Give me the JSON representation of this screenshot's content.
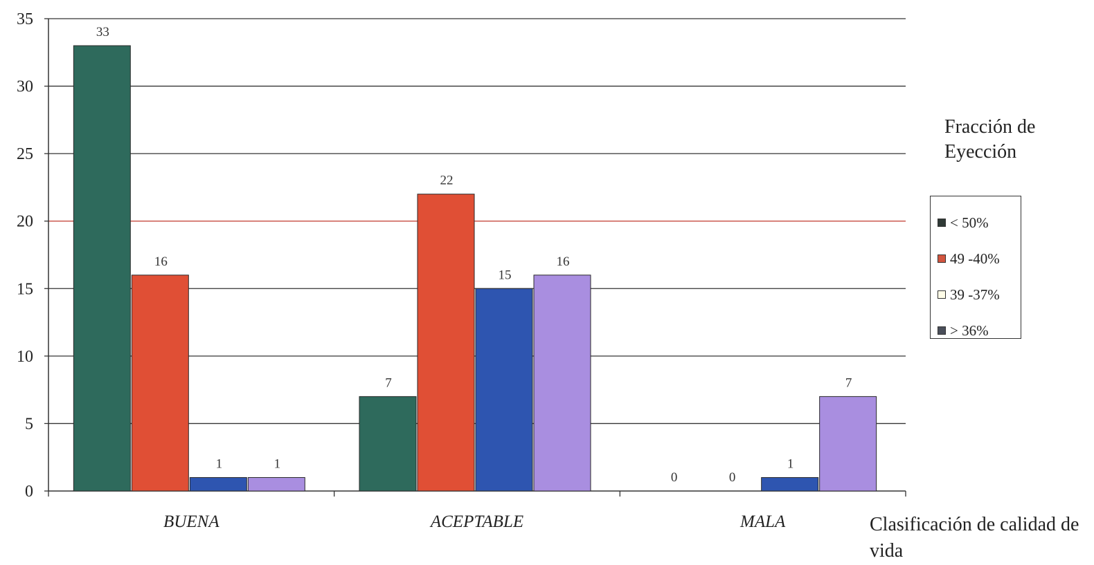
{
  "chart_data": {
    "type": "bar",
    "categories": [
      "BUENA",
      "ACEPTABLE",
      "MALA"
    ],
    "series": [
      {
        "name": "< 50%",
        "values": [
          33,
          7,
          0
        ],
        "color": "#2e6a5c"
      },
      {
        "name": "49 -40%",
        "values": [
          16,
          22,
          0
        ],
        "color": "#e04f35"
      },
      {
        "name": "39  -37%",
        "values": [
          1,
          15,
          1
        ],
        "color": "#2e55b0"
      },
      {
        "name": "> 36%",
        "values": [
          1,
          16,
          7
        ],
        "color": "#a98ee0"
      }
    ],
    "data_labels": [
      [
        "33",
        "7",
        "0"
      ],
      [
        "16",
        "22",
        "0"
      ],
      [
        "1",
        "15",
        "1"
      ],
      [
        "1",
        "16",
        "7"
      ]
    ],
    "ylim": [
      0,
      35
    ],
    "yticks": [
      "0",
      "5",
      "10",
      "15",
      "20",
      "25",
      "30",
      "35"
    ],
    "grid": true,
    "highlight_line": {
      "value": 20,
      "color": "#c0392b"
    },
    "legend_title": "Fracción de Eyección",
    "legend_position": "right",
    "xlabel": "Clasificación de calidad de vida",
    "ylabel": ""
  }
}
